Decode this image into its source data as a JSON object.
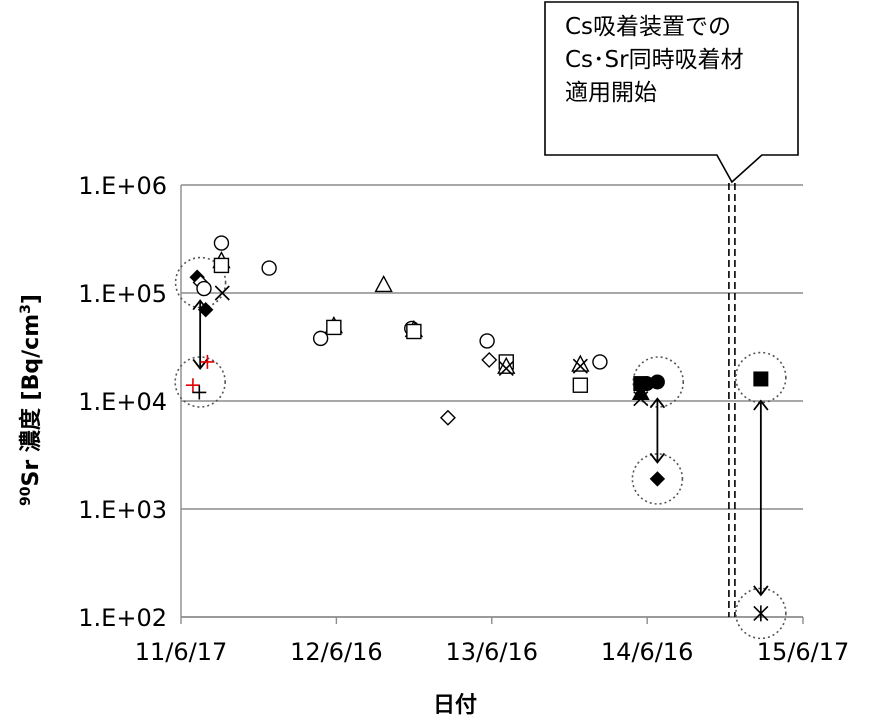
{
  "chart_data": {
    "type": "scatter",
    "title": "",
    "xlabel": "日付",
    "ylabel_prefix": "90",
    "ylabel_main": "Sr 濃度 [Bq/cm",
    "ylabel_sup": "3",
    "ylabel_suffix": "]",
    "y_scale": "log",
    "ylim": [
      100,
      1000000
    ],
    "xlim": [
      "2011-06-17",
      "2015-06-17"
    ],
    "y_tick_labels": [
      "1.E+02",
      "1.E+03",
      "1.E+04",
      "1.E+05",
      "1.E+06"
    ],
    "y_tick_values": [
      100,
      1000,
      10000,
      100000,
      1000000
    ],
    "x_tick_labels": [
      "11/6/17",
      "12/6/16",
      "13/6/16",
      "14/6/16",
      "15/6/17"
    ],
    "x_tick_values": [
      "2011-06-17",
      "2012-06-16",
      "2013-06-16",
      "2014-06-16",
      "2015-06-17"
    ],
    "grid": "horizontal",
    "callout": {
      "lines": [
        "Cs吸着装置での",
        "Cs･Sr同時吸着材",
        "適用開始"
      ],
      "date": "2015-01-01"
    },
    "points": [
      {
        "x": "2011-07-25",
        "y": 140000,
        "marker": "diamond-filled",
        "color": "#000000"
      },
      {
        "x": "2011-08-02",
        "y": 125000,
        "marker": "diamond-open",
        "color": "#000000"
      },
      {
        "x": "2011-08-10",
        "y": 110000,
        "marker": "circle-open",
        "color": "#000000"
      },
      {
        "x": "2011-08-14",
        "y": 70000,
        "marker": "diamond-filled",
        "color": "#000000"
      },
      {
        "x": "2011-09-20",
        "y": 290000,
        "marker": "circle-open",
        "color": "#000000"
      },
      {
        "x": "2011-09-20",
        "y": 200000,
        "marker": "triangle-open",
        "color": "#000000"
      },
      {
        "x": "2011-09-20",
        "y": 180000,
        "marker": "square-open",
        "color": "#000000"
      },
      {
        "x": "2011-09-22",
        "y": 100000,
        "marker": "x",
        "color": "#000000"
      },
      {
        "x": "2011-07-15",
        "y": 14000,
        "marker": "plus",
        "color": "#e00000"
      },
      {
        "x": "2011-08-18",
        "y": 23000,
        "marker": "plus",
        "color": "#e00000"
      },
      {
        "x": "2011-07-30",
        "y": 12000,
        "marker": "plus",
        "color": "#000000"
      },
      {
        "x": "2012-01-10",
        "y": 170000,
        "marker": "circle-open",
        "color": "#000000"
      },
      {
        "x": "2012-05-10",
        "y": 38000,
        "marker": "circle-open",
        "color": "#000000"
      },
      {
        "x": "2012-06-10",
        "y": 50000,
        "marker": "triangle-open",
        "color": "#000000"
      },
      {
        "x": "2012-06-10",
        "y": 48000,
        "marker": "square-open",
        "color": "#000000"
      },
      {
        "x": "2012-10-05",
        "y": 120000,
        "marker": "triangle-open",
        "color": "#000000"
      },
      {
        "x": "2012-12-10",
        "y": 47000,
        "marker": "circle-open",
        "color": "#000000"
      },
      {
        "x": "2012-12-15",
        "y": 46000,
        "marker": "triangle-open",
        "color": "#000000"
      },
      {
        "x": "2012-12-15",
        "y": 44000,
        "marker": "square-open",
        "color": "#000000"
      },
      {
        "x": "2013-03-05",
        "y": 7000,
        "marker": "diamond-open",
        "color": "#000000"
      },
      {
        "x": "2013-06-05",
        "y": 36000,
        "marker": "circle-open",
        "color": "#000000"
      },
      {
        "x": "2013-06-10",
        "y": 24000,
        "marker": "diamond-open",
        "color": "#000000"
      },
      {
        "x": "2013-07-20",
        "y": 23000,
        "marker": "square-open",
        "color": "#000000"
      },
      {
        "x": "2013-07-20",
        "y": 21000,
        "marker": "triangle-open",
        "color": "#000000"
      },
      {
        "x": "2013-07-20",
        "y": 20000,
        "marker": "x",
        "color": "#000000"
      },
      {
        "x": "2014-01-10",
        "y": 22000,
        "marker": "triangle-open",
        "color": "#000000"
      },
      {
        "x": "2014-01-10",
        "y": 21000,
        "marker": "x",
        "color": "#000000"
      },
      {
        "x": "2014-01-10",
        "y": 14000,
        "marker": "square-open",
        "color": "#000000"
      },
      {
        "x": "2014-02-25",
        "y": 23000,
        "marker": "circle-open",
        "color": "#000000"
      },
      {
        "x": "2014-06-01",
        "y": 14500,
        "marker": "square-filled",
        "color": "#000000"
      },
      {
        "x": "2014-06-01",
        "y": 12000,
        "marker": "triangle-filled",
        "color": "#000000"
      },
      {
        "x": "2014-06-01",
        "y": 10500,
        "marker": "x",
        "color": "#000000"
      },
      {
        "x": "2014-06-15",
        "y": 14500,
        "marker": "circle-filled",
        "color": "#000000"
      },
      {
        "x": "2014-07-10",
        "y": 15000,
        "marker": "circle-filled",
        "color": "#000000"
      },
      {
        "x": "2014-07-10",
        "y": 1900,
        "marker": "diamond-filled",
        "color": "#000000"
      },
      {
        "x": "2015-03-10",
        "y": 16000,
        "marker": "square-filled",
        "color": "#000000"
      },
      {
        "x": "2015-03-10",
        "y": 108,
        "marker": "asterisk",
        "color": "#000000"
      }
    ],
    "highlight_circles": [
      {
        "x": "2011-08-02",
        "y": 125000
      },
      {
        "x": "2011-08-01",
        "y": 15000
      },
      {
        "x": "2014-07-12",
        "y": 15000
      },
      {
        "x": "2014-07-10",
        "y": 1900
      },
      {
        "x": "2015-03-10",
        "y": 16500
      },
      {
        "x": "2015-03-10",
        "y": 108
      }
    ],
    "arrows": [
      {
        "x": "2011-08-01",
        "y1": 85000,
        "y2": 20000
      },
      {
        "x": "2014-07-10",
        "y1": 10500,
        "y2": 2700
      },
      {
        "x": "2015-03-10",
        "y1": 10000,
        "y2": 160
      }
    ]
  }
}
